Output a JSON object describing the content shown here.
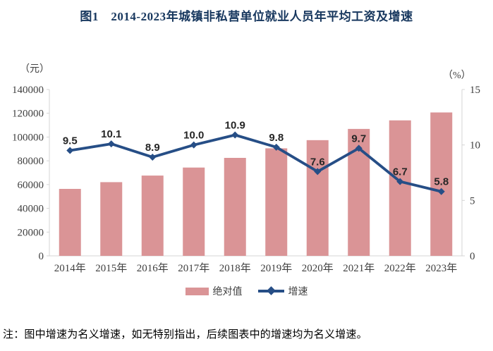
{
  "title": "图1　2014-2023年城镇非私营单位就业人员年平均工资及增速",
  "note": "注：图中增速为名义增速，如无特别指出，后续图表中的增速均为名义增速。",
  "chart_data": {
    "type": "bar+line combo",
    "title": "图1　2014-2023年城镇非私营单位就业人员年平均工资及增速",
    "categories": [
      "2014年",
      "2015年",
      "2016年",
      "2017年",
      "2018年",
      "2019年",
      "2020年",
      "2021年",
      "2022年",
      "2023年"
    ],
    "series": [
      {
        "name": "绝对值",
        "type": "bar",
        "axis": "left",
        "color": "#DA9496",
        "values": [
          56360,
          62029,
          67569,
          74318,
          82461,
          90501,
          97379,
          106837,
          114029,
          120698
        ]
      },
      {
        "name": "增速",
        "type": "line",
        "axis": "right",
        "color": "#264E86",
        "values": [
          9.5,
          10.1,
          8.9,
          10.0,
          10.9,
          9.8,
          7.6,
          9.7,
          6.7,
          5.8
        ],
        "labels": [
          "9.5",
          "10.1",
          "8.9",
          "10.0",
          "10.9",
          "9.8",
          "7.6",
          "9.7",
          "6.7",
          "5.8"
        ]
      }
    ],
    "left_axis": {
      "unit": "（元）",
      "min": 0,
      "max": 140000,
      "step": 20000,
      "ticks": [
        "140000",
        "120000",
        "100000",
        "80000",
        "60000",
        "40000",
        "20000",
        "0"
      ]
    },
    "right_axis": {
      "unit": "（%）",
      "min": 0,
      "max": 15,
      "step": 5,
      "ticks": [
        "15",
        "10",
        "5",
        "0"
      ]
    },
    "grid": false,
    "legend_position": "bottom",
    "axis_color": "#D4D4D4"
  }
}
